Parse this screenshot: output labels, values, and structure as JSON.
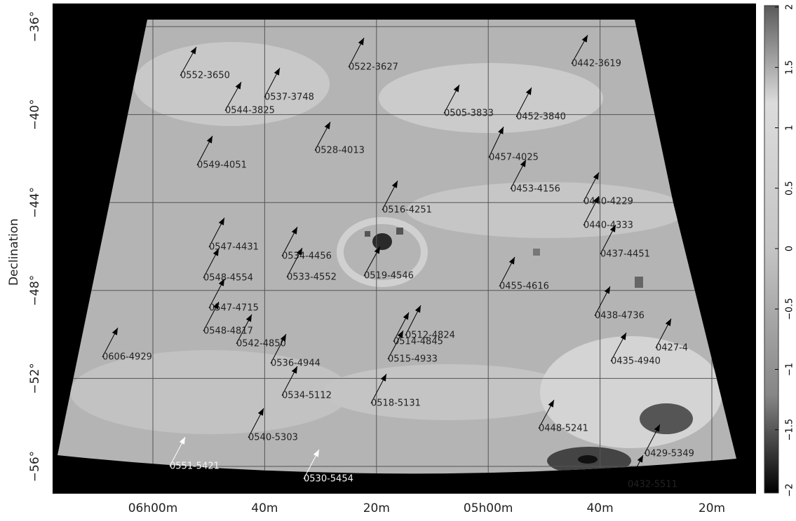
{
  "y_axis": {
    "label": "Declination",
    "ticks": [
      {
        "value": -36,
        "label": "−36°"
      },
      {
        "value": -40,
        "label": "−40°"
      },
      {
        "value": -44,
        "label": "−44°"
      },
      {
        "value": -48,
        "label": "−48°"
      },
      {
        "value": -52,
        "label": "−52°"
      },
      {
        "value": -56,
        "label": "−56°"
      }
    ]
  },
  "x_axis": {
    "ticks": [
      "06h00m",
      "40m",
      "20m",
      "05h00m",
      "40m",
      "20m"
    ]
  },
  "colorbar": {
    "ticks": [
      2,
      1.5,
      1,
      0.5,
      0,
      {
        "value": -0.5,
        "label": "−0.5"
      },
      {
        "value": -1,
        "label": "−1"
      },
      {
        "value": -1.5,
        "label": "−1.5"
      },
      {
        "value": -2,
        "label": "−2"
      }
    ]
  },
  "sources": [
    {
      "label": "0552-3650",
      "arrow_color": "black"
    },
    {
      "label": "0537-3748",
      "arrow_color": "black"
    },
    {
      "label": "0544-3825",
      "arrow_color": "black"
    },
    {
      "label": "0522-3627",
      "arrow_color": "black"
    },
    {
      "label": "0442-3619",
      "arrow_color": "black"
    },
    {
      "label": "0505-3833",
      "arrow_color": "black"
    },
    {
      "label": "0452-3840",
      "arrow_color": "black"
    },
    {
      "label": "0528-4013",
      "arrow_color": "black"
    },
    {
      "label": "0549-4051",
      "arrow_color": "black"
    },
    {
      "label": "0457-4025",
      "arrow_color": "black"
    },
    {
      "label": "0453-4156",
      "arrow_color": "black"
    },
    {
      "label": "0516-4251",
      "arrow_color": "black"
    },
    {
      "label": "0440-4229",
      "arrow_color": "black"
    },
    {
      "label": "0440-4333",
      "arrow_color": "black"
    },
    {
      "label": "0437-4451",
      "arrow_color": "black"
    },
    {
      "label": "0547-4431",
      "arrow_color": "black"
    },
    {
      "label": "0534-4456",
      "arrow_color": "black"
    },
    {
      "label": "0548-4554",
      "arrow_color": "black"
    },
    {
      "label": "0533-4552",
      "arrow_color": "black"
    },
    {
      "label": "0519-4546",
      "arrow_color": "black"
    },
    {
      "label": "0455-4616",
      "arrow_color": "black"
    },
    {
      "label": "0547-4715",
      "arrow_color": "black"
    },
    {
      "label": "0438-4736",
      "arrow_color": "black"
    },
    {
      "label": "0548-4817",
      "arrow_color": "black"
    },
    {
      "label": "0512-4824",
      "arrow_color": "black"
    },
    {
      "label": "0542-4850",
      "arrow_color": "black"
    },
    {
      "label": "0514-4845",
      "arrow_color": "black"
    },
    {
      "label": "0606-4929",
      "arrow_color": "black"
    },
    {
      "label": "0427-4",
      "arrow_color": "black"
    },
    {
      "label": "0536-4944",
      "arrow_color": "black"
    },
    {
      "label": "0515-4933",
      "arrow_color": "black"
    },
    {
      "label": "0435-4940",
      "arrow_color": "black"
    },
    {
      "label": "0534-5112",
      "arrow_color": "black"
    },
    {
      "label": "0518-5131",
      "arrow_color": "black"
    },
    {
      "label": "0448-5241",
      "arrow_color": "black"
    },
    {
      "label": "0540-5303",
      "arrow_color": "black"
    },
    {
      "label": "0429-5349",
      "arrow_color": "black"
    },
    {
      "label": "0551-5421",
      "arrow_color": "white"
    },
    {
      "label": "0530-5454",
      "arrow_color": "white"
    },
    {
      "label": "0432-5511",
      "arrow_color": "black"
    }
  ]
}
